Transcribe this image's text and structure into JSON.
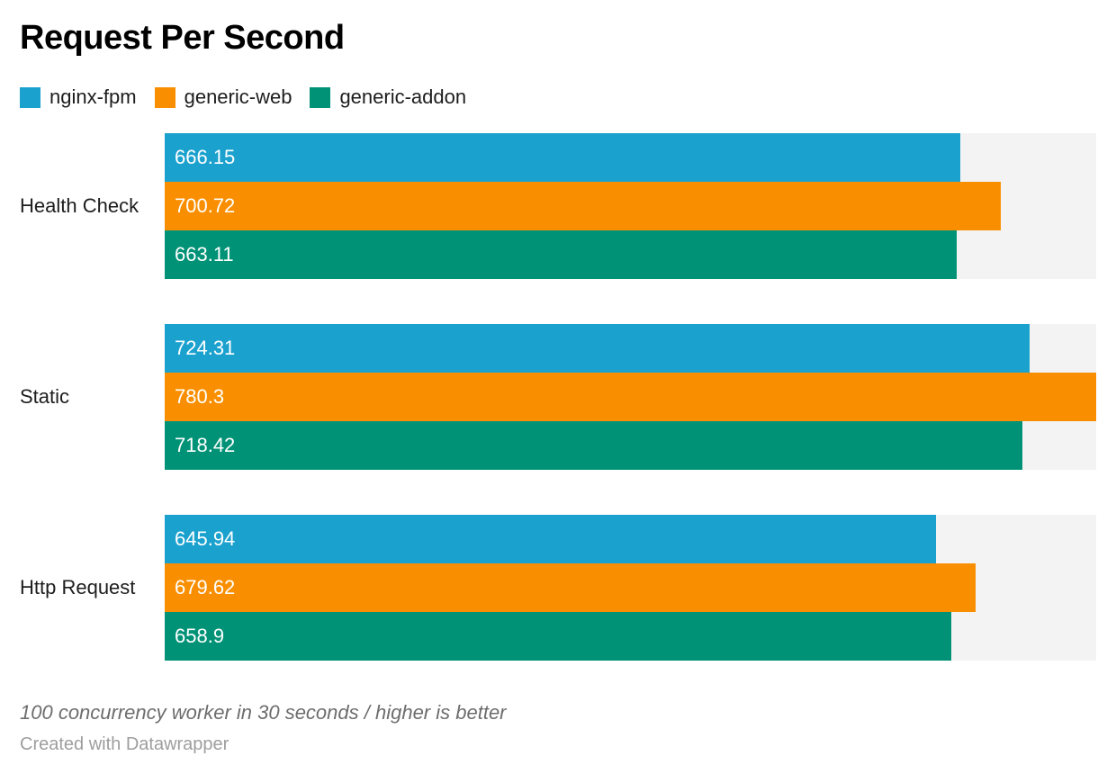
{
  "chart_data": {
    "type": "bar",
    "orientation": "horizontal",
    "title": "Request Per Second",
    "categories": [
      "Health Check",
      "Static",
      "Http Request"
    ],
    "series": [
      {
        "name": "nginx-fpm",
        "color": "#1BA1CE",
        "values": [
          666.15,
          724.31,
          645.94
        ]
      },
      {
        "name": "generic-web",
        "color": "#F98F00",
        "values": [
          700.72,
          780.3,
          679.62
        ]
      },
      {
        "name": "generic-addon",
        "color": "#009276",
        "values": [
          663.11,
          718.42,
          658.9
        ]
      }
    ],
    "xmax": 780.3,
    "xmin": 0,
    "grid": false,
    "legend_position": "top",
    "track_color": "#F3F3F3",
    "value_label_color": "#FFFFFF",
    "notes": "100 concurrency worker in 30 seconds / higher is better",
    "attribution": "Created with Datawrapper"
  }
}
